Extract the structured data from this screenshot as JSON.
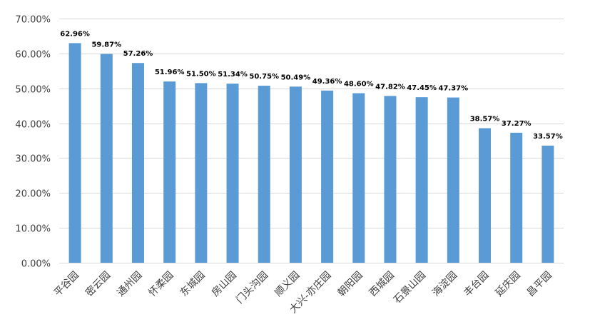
{
  "chart_data": {
    "type": "bar",
    "categories": [
      "平谷园",
      "密云园",
      "通州园",
      "怀柔园",
      "东城园",
      "房山园",
      "门头沟园",
      "顺义园",
      "大兴-亦庄园",
      "朝阳园",
      "西城园",
      "石景山园",
      "海淀园",
      "丰台园",
      "延庆园",
      "昌平园"
    ],
    "values": [
      62.96,
      59.87,
      57.26,
      51.96,
      51.5,
      51.34,
      50.75,
      50.49,
      49.36,
      48.6,
      47.82,
      47.45,
      47.37,
      38.57,
      37.27,
      33.57
    ],
    "data_labels": [
      "62.96%",
      "59.87%",
      "57.26%",
      "51.96%",
      "51.50%",
      "51.34%",
      "50.75%",
      "50.49%",
      "49.36%",
      "48.60%",
      "47.82%",
      "47.45%",
      "47.37%",
      "38.57%",
      "37.27%",
      "33.57%"
    ],
    "y_ticks": [
      0,
      10,
      20,
      30,
      40,
      50,
      60,
      70
    ],
    "y_tick_labels": [
      "0.00%",
      "10.00%",
      "20.00%",
      "30.00%",
      "40.00%",
      "50.00%",
      "60.00%",
      "70.00%"
    ],
    "ylim": [
      0,
      70
    ],
    "unit": "%",
    "title": "",
    "xlabel": "",
    "ylabel": "",
    "grid": true,
    "legend": false,
    "colors": {
      "bar": "#5b9bd5",
      "grid": "#d9d9d9",
      "tick_text": "#404040",
      "label_text": "#000000"
    }
  }
}
